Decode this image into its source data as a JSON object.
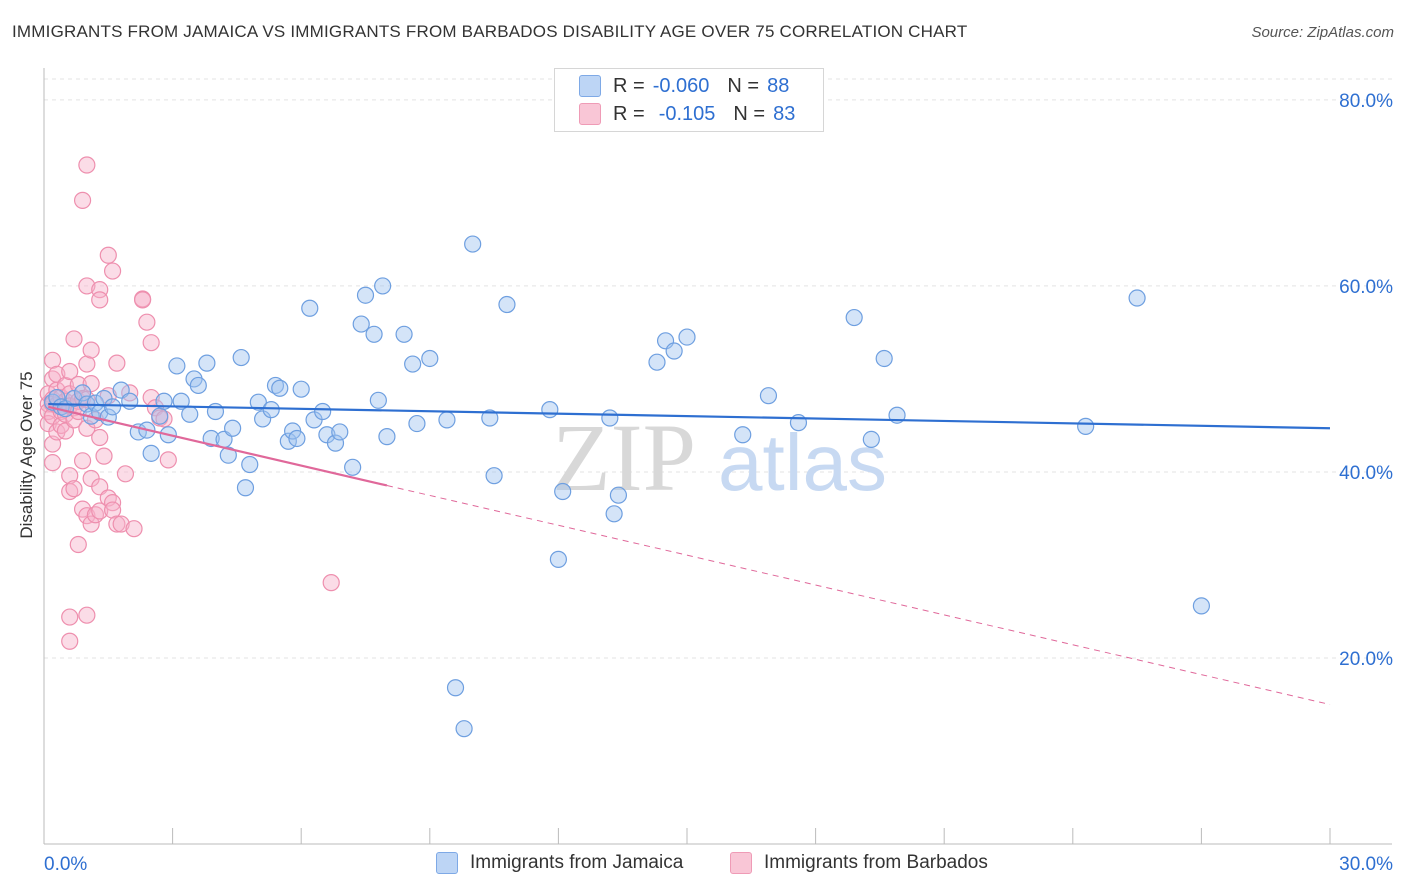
{
  "title": "IMMIGRANTS FROM JAMAICA VS IMMIGRANTS FROM BARBADOS DISABILITY AGE OVER 75 CORRELATION CHART",
  "source": "Source: ZipAtlas.com",
  "watermark": {
    "zip": "ZIP",
    "atlas": "atlas"
  },
  "legend": {
    "r_label": "R =",
    "n_label": "N =",
    "rows": [
      {
        "r": "-0.060",
        "n": "88",
        "color": "#7ea9e6"
      },
      {
        "r": "-0.105",
        "n": "83",
        "color": "#ef9bb6"
      }
    ]
  },
  "colors": {
    "blue": "#6e9fe0",
    "blue_line": "#2e6fd1",
    "pink": "#ee8fae",
    "pink_line": "#e0689a",
    "grid": "#e3e3e3",
    "axis_text": "#2e6fd1"
  },
  "chart_data": {
    "type": "scatter",
    "title": "IMMIGRANTS FROM JAMAICA VS IMMIGRANTS FROM BARBADOS DISABILITY AGE OVER 75 CORRELATION CHART",
    "xlabel": "",
    "ylabel": "Disability Age Over 75",
    "xlim": [
      0,
      30
    ],
    "ylim": [
      0,
      83
    ],
    "x_tick_labels": [
      "0.0%",
      "30.0%"
    ],
    "y_ticks": [
      20,
      40,
      60,
      80
    ],
    "y_tick_labels": [
      "20.0%",
      "40.0%",
      "60.0%",
      "80.0%"
    ],
    "legend_position": "bottom",
    "series": [
      {
        "name": "Immigrants from Jamaica",
        "color": "#6e9fe0",
        "trend": {
          "x0": 0.1,
          "y0": 47.3,
          "x1": 30.0,
          "y1": 44.7,
          "dashed_from": null
        },
        "points": [
          [
            0.2,
            47.5
          ],
          [
            0.3,
            48.0
          ],
          [
            0.4,
            47.0
          ],
          [
            0.5,
            46.8
          ],
          [
            0.7,
            47.9
          ],
          [
            0.9,
            48.5
          ],
          [
            1.0,
            47.3
          ],
          [
            1.1,
            46.0
          ],
          [
            1.2,
            47.4
          ],
          [
            1.3,
            46.4
          ],
          [
            1.4,
            47.9
          ],
          [
            1.5,
            45.9
          ],
          [
            1.6,
            47.0
          ],
          [
            1.8,
            48.8
          ],
          [
            2.0,
            47.6
          ],
          [
            2.2,
            44.3
          ],
          [
            2.4,
            44.5
          ],
          [
            2.5,
            42.0
          ],
          [
            2.7,
            46.0
          ],
          [
            2.8,
            47.6
          ],
          [
            2.9,
            44.0
          ],
          [
            3.1,
            51.4
          ],
          [
            3.2,
            47.6
          ],
          [
            3.4,
            46.2
          ],
          [
            3.5,
            50.0
          ],
          [
            3.6,
            49.3
          ],
          [
            3.8,
            51.7
          ],
          [
            3.9,
            43.6
          ],
          [
            4.0,
            46.5
          ],
          [
            4.2,
            43.5
          ],
          [
            4.3,
            41.8
          ],
          [
            4.4,
            44.7
          ],
          [
            4.6,
            52.3
          ],
          [
            4.7,
            38.3
          ],
          [
            4.8,
            40.8
          ],
          [
            5.0,
            47.5
          ],
          [
            5.1,
            45.7
          ],
          [
            5.3,
            46.7
          ],
          [
            5.4,
            49.3
          ],
          [
            5.5,
            49.0
          ],
          [
            5.7,
            43.3
          ],
          [
            5.8,
            44.4
          ],
          [
            5.9,
            43.6
          ],
          [
            6.0,
            48.9
          ],
          [
            6.2,
            57.6
          ],
          [
            6.3,
            45.6
          ],
          [
            6.5,
            46.5
          ],
          [
            6.6,
            44.0
          ],
          [
            6.8,
            43.1
          ],
          [
            6.9,
            44.3
          ],
          [
            7.2,
            40.5
          ],
          [
            7.4,
            55.9
          ],
          [
            7.5,
            59.0
          ],
          [
            7.7,
            54.8
          ],
          [
            7.8,
            47.7
          ],
          [
            7.9,
            60.0
          ],
          [
            8.0,
            43.8
          ],
          [
            8.4,
            54.8
          ],
          [
            8.6,
            51.6
          ],
          [
            8.7,
            45.2
          ],
          [
            9.0,
            52.2
          ],
          [
            9.4,
            45.6
          ],
          [
            9.6,
            16.8
          ],
          [
            9.8,
            12.4
          ],
          [
            10.0,
            64.5
          ],
          [
            10.4,
            45.8
          ],
          [
            10.5,
            39.6
          ],
          [
            10.8,
            58.0
          ],
          [
            11.8,
            46.7
          ],
          [
            12.0,
            30.6
          ],
          [
            12.1,
            37.9
          ],
          [
            13.2,
            45.8
          ],
          [
            13.3,
            35.5
          ],
          [
            13.4,
            37.5
          ],
          [
            14.3,
            51.8
          ],
          [
            14.5,
            54.1
          ],
          [
            14.7,
            53.0
          ],
          [
            15.0,
            54.5
          ],
          [
            16.3,
            44.0
          ],
          [
            16.9,
            48.2
          ],
          [
            17.6,
            45.3
          ],
          [
            18.9,
            56.6
          ],
          [
            19.3,
            43.5
          ],
          [
            19.6,
            52.2
          ],
          [
            19.9,
            46.1
          ],
          [
            24.3,
            44.9
          ],
          [
            25.5,
            58.7
          ],
          [
            27.0,
            25.6
          ]
        ]
      },
      {
        "name": "Immigrants from Barbados",
        "color": "#ee8fae",
        "trend": {
          "x0": 0.1,
          "y0": 47.0,
          "x1": 30.0,
          "y1": 15.0,
          "dashed_from": 8.0
        },
        "points": [
          [
            0.1,
            47.3
          ],
          [
            0.1,
            48.4
          ],
          [
            0.1,
            46.5
          ],
          [
            0.1,
            45.2
          ],
          [
            0.2,
            47.8
          ],
          [
            0.2,
            50.0
          ],
          [
            0.2,
            52.0
          ],
          [
            0.2,
            47.3
          ],
          [
            0.2,
            46.0
          ],
          [
            0.2,
            43.0
          ],
          [
            0.2,
            41.0
          ],
          [
            0.3,
            48.8
          ],
          [
            0.3,
            47.2
          ],
          [
            0.3,
            50.5
          ],
          [
            0.3,
            44.3
          ],
          [
            0.4,
            47.0
          ],
          [
            0.4,
            48.0
          ],
          [
            0.4,
            46.5
          ],
          [
            0.4,
            45.0
          ],
          [
            0.5,
            49.3
          ],
          [
            0.5,
            47.6
          ],
          [
            0.5,
            44.4
          ],
          [
            0.5,
            46.2
          ],
          [
            0.6,
            50.8
          ],
          [
            0.6,
            48.4
          ],
          [
            0.6,
            47.1
          ],
          [
            0.6,
            39.6
          ],
          [
            0.6,
            37.9
          ],
          [
            0.6,
            24.4
          ],
          [
            0.6,
            21.8
          ],
          [
            0.7,
            54.3
          ],
          [
            0.7,
            46.9
          ],
          [
            0.7,
            45.6
          ],
          [
            0.7,
            38.2
          ],
          [
            0.8,
            49.4
          ],
          [
            0.8,
            47.6
          ],
          [
            0.8,
            46.5
          ],
          [
            0.8,
            32.2
          ],
          [
            0.9,
            47.9
          ],
          [
            0.9,
            69.2
          ],
          [
            0.9,
            36.0
          ],
          [
            0.9,
            41.2
          ],
          [
            1.0,
            73.0
          ],
          [
            1.0,
            60.0
          ],
          [
            1.0,
            51.6
          ],
          [
            1.0,
            47.8
          ],
          [
            1.0,
            44.7
          ],
          [
            1.0,
            35.3
          ],
          [
            1.0,
            24.6
          ],
          [
            1.1,
            53.1
          ],
          [
            1.1,
            49.5
          ],
          [
            1.1,
            39.3
          ],
          [
            1.1,
            34.4
          ],
          [
            1.2,
            45.6
          ],
          [
            1.2,
            35.4
          ],
          [
            1.3,
            59.6
          ],
          [
            1.3,
            58.5
          ],
          [
            1.3,
            43.7
          ],
          [
            1.3,
            38.4
          ],
          [
            1.3,
            35.8
          ],
          [
            1.4,
            41.7
          ],
          [
            1.5,
            37.2
          ],
          [
            1.5,
            48.2
          ],
          [
            1.5,
            63.3
          ],
          [
            1.6,
            61.6
          ],
          [
            1.6,
            36.7
          ],
          [
            1.6,
            35.9
          ],
          [
            1.7,
            51.7
          ],
          [
            1.7,
            34.4
          ],
          [
            1.8,
            34.4
          ],
          [
            1.9,
            39.8
          ],
          [
            2.0,
            48.5
          ],
          [
            2.1,
            33.9
          ],
          [
            2.3,
            58.6
          ],
          [
            2.3,
            58.5
          ],
          [
            2.4,
            56.1
          ],
          [
            2.5,
            53.9
          ],
          [
            2.5,
            48.0
          ],
          [
            2.6,
            46.9
          ],
          [
            2.7,
            45.8
          ],
          [
            2.8,
            45.7
          ],
          [
            2.9,
            41.3
          ],
          [
            6.7,
            28.1
          ]
        ]
      }
    ]
  },
  "bottom_legend": {
    "items": [
      {
        "label": "Immigrants from Jamaica"
      },
      {
        "label": "Immigrants from Barbados"
      }
    ]
  }
}
